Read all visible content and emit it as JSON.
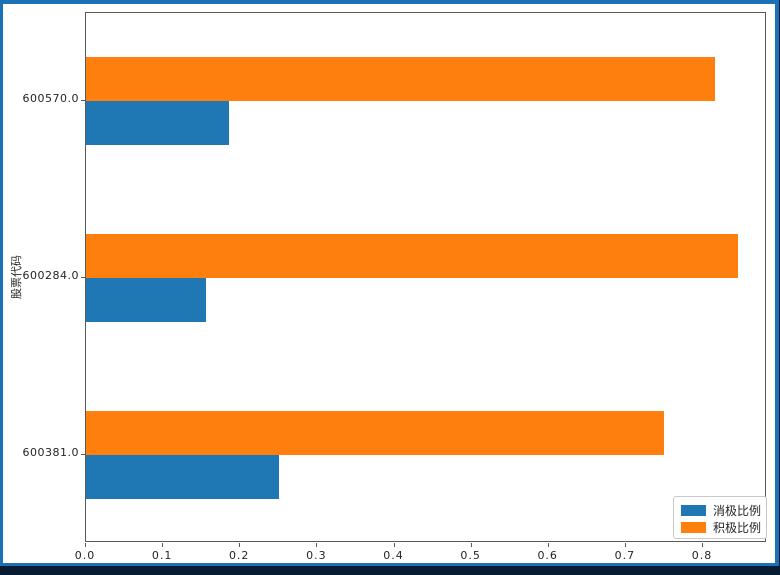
{
  "frame": {
    "outer_background": "#071c31",
    "border_color": "#1c70b6",
    "figure_background": "#ffffff"
  },
  "chart_data": {
    "type": "bar",
    "orientation": "horizontal",
    "title": "",
    "xlabel": "",
    "ylabel": "股票代码",
    "categories": [
      "600570.0",
      "600284.0",
      "600381.0"
    ],
    "series": [
      {
        "name": "消极比例",
        "color": "#1f77b4",
        "values": [
          0.185,
          0.155,
          0.25
        ]
      },
      {
        "name": "积极比例",
        "color": "#ff7f0e",
        "values": [
          0.815,
          0.845,
          0.75
        ]
      }
    ],
    "xticks": [
      0.0,
      0.1,
      0.2,
      0.3,
      0.4,
      0.5,
      0.6,
      0.7,
      0.8
    ],
    "xlim": [
      0,
      0.883
    ],
    "grid": false,
    "legend_position": "lower right"
  }
}
